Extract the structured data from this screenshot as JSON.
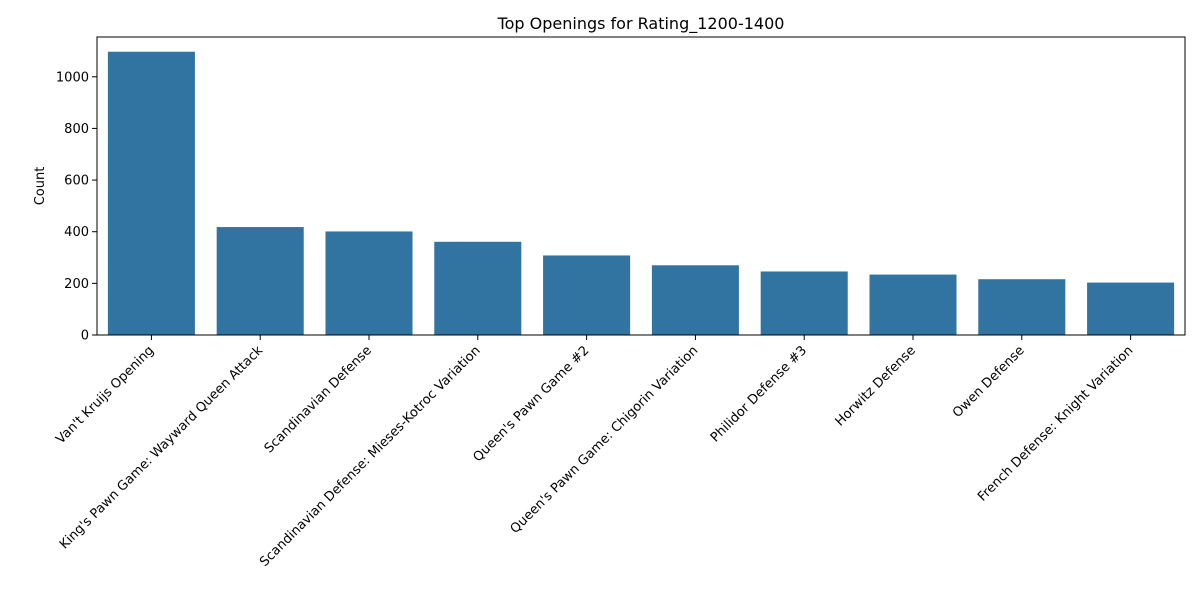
{
  "chart_data": {
    "type": "bar",
    "title": "Top Openings for Rating_1200-1400",
    "xlabel": "",
    "ylabel": "Count",
    "categories": [
      "Van't Kruijs Opening",
      "King's Pawn Game: Wayward Queen Attack",
      "Scandinavian Defense",
      "Scandinavian Defense: Mieses-Kotroc Variation",
      "Queen's Pawn Game #2",
      "Queen's Pawn Game: Chigorin Variation",
      "Philidor Defense #3",
      "Horwitz Defense",
      "Owen Defense",
      "French Defense: Knight Variation"
    ],
    "values": [
      1097,
      418,
      401,
      361,
      308,
      270,
      246,
      234,
      216,
      203
    ],
    "ylim": [
      0,
      1154
    ],
    "yticks": [
      0,
      200,
      400,
      600,
      800,
      1000
    ],
    "color": "#3274a1",
    "grid": false
  }
}
